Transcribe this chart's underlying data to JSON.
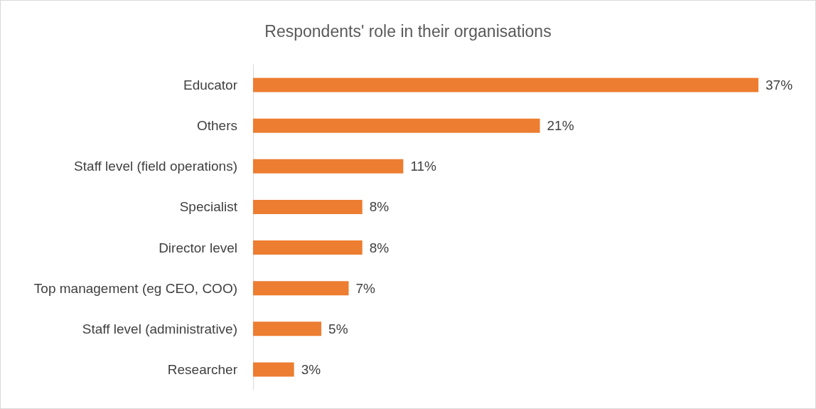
{
  "chart_data": {
    "type": "bar",
    "orientation": "horizontal",
    "title": "Respondents' role in their organisations",
    "categories": [
      "Educator",
      "Others",
      "Staff level (field operations)",
      "Specialist",
      "Director level",
      "Top management (eg CEO, COO)",
      "Staff level (administrative)",
      "Researcher"
    ],
    "values": [
      37,
      21,
      11,
      8,
      8,
      7,
      5,
      3
    ],
    "value_labels": [
      "37%",
      "21%",
      "11%",
      "8%",
      "8%",
      "7%",
      "5%",
      "3%"
    ],
    "color": "#ed7d31"
  }
}
